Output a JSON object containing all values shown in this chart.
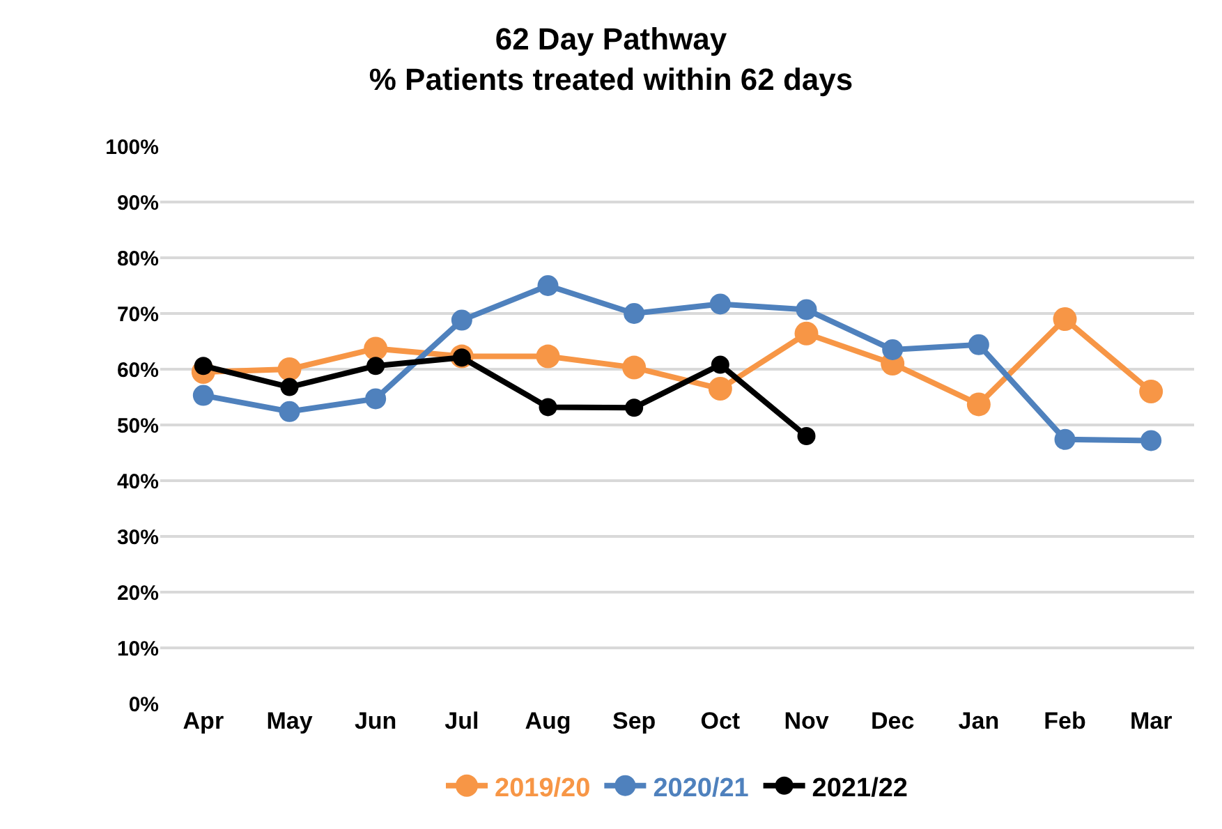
{
  "chart_data": {
    "type": "line",
    "title": "62 Day Pathway\n% Patients treated within 62 days",
    "categories": [
      "Apr",
      "May",
      "Jun",
      "Jul",
      "Aug",
      "Sep",
      "Oct",
      "Nov",
      "Dec",
      "Jan",
      "Feb",
      "Mar"
    ],
    "series": [
      {
        "name": "2019/20",
        "color": "#f79646",
        "values": [
          59.5,
          60,
          63.7,
          62.3,
          62.3,
          60.3,
          56.5,
          66.4,
          61,
          53.7,
          69,
          56
        ]
      },
      {
        "name": "2020/21",
        "color": "#4f81bd",
        "values": [
          55.3,
          52.4,
          54.7,
          68.8,
          75,
          70,
          71.7,
          70.7,
          63.5,
          64.4,
          47.4,
          47.2
        ]
      },
      {
        "name": "2021/22",
        "color": "#000000",
        "values": [
          60.6,
          56.8,
          60.6,
          62.1,
          53.2,
          53.1,
          60.8,
          48,
          null,
          null,
          null,
          null
        ]
      }
    ],
    "ylim": [
      0,
      100
    ],
    "yticks": [
      {
        "value": 0,
        "label": "0%"
      },
      {
        "value": 10,
        "label": "10%"
      },
      {
        "value": 20,
        "label": "20%"
      },
      {
        "value": 30,
        "label": "30%"
      },
      {
        "value": 40,
        "label": "40%"
      },
      {
        "value": 50,
        "label": "50%"
      },
      {
        "value": 60,
        "label": "60%"
      },
      {
        "value": 70,
        "label": "70%"
      },
      {
        "value": 80,
        "label": "80%"
      },
      {
        "value": 90,
        "label": "90%"
      },
      {
        "value": 100,
        "label": "100%"
      }
    ],
    "grid": "y",
    "legend": "bottom",
    "marker": "circle",
    "line_style": "solid"
  }
}
